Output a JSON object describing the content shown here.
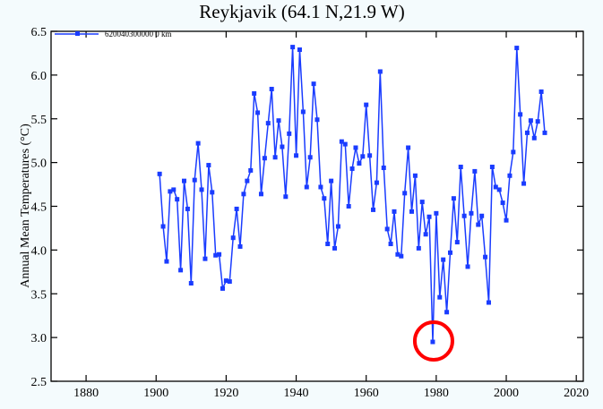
{
  "chart_data": {
    "type": "line",
    "title": "Reykjavik (64.1 N,21.9 W)",
    "xlabel": "",
    "ylabel": "Annual Mean Temperatures (°C)",
    "xlim": [
      1870,
      2022
    ],
    "ylim": [
      2.5,
      6.5
    ],
    "xticks": [
      1880,
      1900,
      1920,
      1940,
      1960,
      1980,
      2000,
      2020
    ],
    "yticks": [
      "2.5",
      "3.0",
      "3.5",
      "4.0",
      "4.5",
      "5.0",
      "5.5",
      "6.0",
      "6.5"
    ],
    "grid": false,
    "legend": {
      "placement": "top-left",
      "label": "620040300000  0 km"
    },
    "series": [
      {
        "name": "620040300000  0 km",
        "color": "#1a3cff",
        "x": [
          1901,
          1902,
          1903,
          1904,
          1905,
          1906,
          1907,
          1908,
          1909,
          1910,
          1911,
          1912,
          1913,
          1914,
          1915,
          1916,
          1917,
          1918,
          1919,
          1920,
          1921,
          1922,
          1923,
          1924,
          1925,
          1926,
          1927,
          1928,
          1929,
          1930,
          1931,
          1932,
          1933,
          1934,
          1935,
          1936,
          1937,
          1938,
          1939,
          1940,
          1941,
          1942,
          1943,
          1944,
          1945,
          1946,
          1947,
          1948,
          1949,
          1950,
          1951,
          1952,
          1953,
          1954,
          1955,
          1956,
          1957,
          1958,
          1959,
          1960,
          1961,
          1962,
          1963,
          1964,
          1965,
          1966,
          1967,
          1968,
          1969,
          1970,
          1971,
          1972,
          1973,
          1974,
          1975,
          1976,
          1977,
          1978,
          1979,
          1980,
          1981,
          1982,
          1983,
          1984,
          1985,
          1986,
          1987,
          1988,
          1989,
          1990,
          1991,
          1992,
          1993,
          1994,
          1995,
          1996,
          1997,
          1998,
          1999,
          2000,
          2001,
          2002,
          2003,
          2004,
          2005,
          2006,
          2007,
          2008,
          2009,
          2010,
          2011
        ],
        "y": [
          4.87,
          4.27,
          3.87,
          4.67,
          4.69,
          4.58,
          3.77,
          4.79,
          4.47,
          3.62,
          4.8,
          5.22,
          4.69,
          3.9,
          4.97,
          4.66,
          3.94,
          3.95,
          3.56,
          3.65,
          3.64,
          4.14,
          4.47,
          4.04,
          4.64,
          4.79,
          4.91,
          5.79,
          5.57,
          4.64,
          5.05,
          5.45,
          5.84,
          5.06,
          5.48,
          5.18,
          4.61,
          5.33,
          6.32,
          5.08,
          6.29,
          5.58,
          4.72,
          5.06,
          5.9,
          5.49,
          4.72,
          4.59,
          4.07,
          4.79,
          4.02,
          4.27,
          5.24,
          5.21,
          4.5,
          4.93,
          5.17,
          4.99,
          5.07,
          5.66,
          5.08,
          4.46,
          4.77,
          6.04,
          4.94,
          4.24,
          4.07,
          4.44,
          3.95,
          3.93,
          4.65,
          5.17,
          4.44,
          4.85,
          4.02,
          4.55,
          4.18,
          4.38,
          2.95,
          4.42,
          3.46,
          3.89,
          3.29,
          3.97,
          4.59,
          4.09,
          4.95,
          4.39,
          3.81,
          4.42,
          4.9,
          4.29,
          4.39,
          3.92,
          3.4,
          4.95,
          4.72,
          4.69,
          4.54,
          4.34,
          4.85,
          5.12,
          6.31,
          5.55,
          4.76,
          5.34,
          5.48,
          5.28,
          5.47,
          5.81,
          5.34
        ]
      }
    ],
    "annotations": [
      {
        "type": "circle",
        "x": 1979,
        "y": 2.95,
        "color": "#ff0000"
      }
    ]
  }
}
